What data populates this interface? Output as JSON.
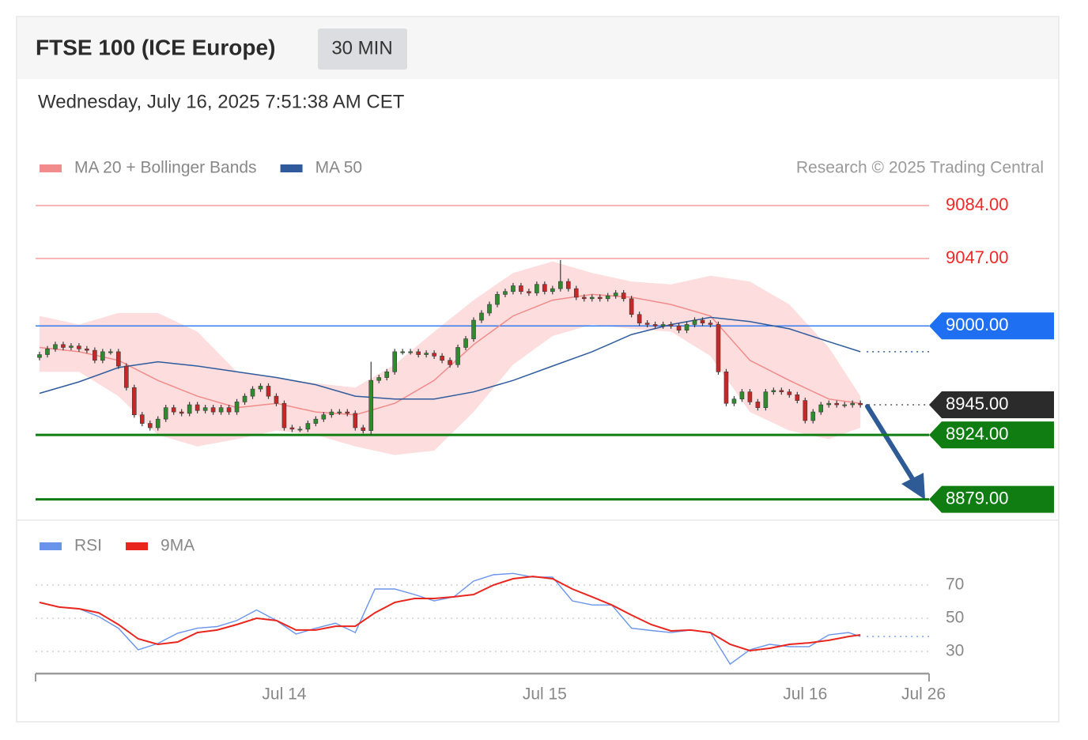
{
  "header": {
    "title": "FTSE 100 (ICE Europe)",
    "timeframe": "30 MIN",
    "date": "Wednesday, July 16, 2025 7:51:38 AM CET"
  },
  "chart_data": [
    {
      "type": "candlestick",
      "credit": "Research © 2025 Trading Central",
      "up_color": "#2e8b2e",
      "down_color": "#c62828",
      "open": [
        8978,
        8980,
        8984,
        8987,
        8985,
        8986,
        8984,
        8983,
        8976,
        8982,
        8982,
        8972,
        8957,
        8938,
        8932,
        8929,
        8935,
        8943,
        8940,
        8939,
        8945,
        8941,
        8943,
        8940,
        8943,
        8940,
        8947,
        8951,
        8956,
        8958,
        8951,
        8946,
        8929,
        8928,
        8928,
        8932,
        8935,
        8938,
        8940,
        8940,
        8939,
        8929,
        8927,
        8962,
        8964,
        8968,
        8982,
        8982,
        8982,
        8980,
        8981,
        8979,
        8976,
        8973,
        8985,
        8991,
        9004,
        9009,
        9015,
        9022,
        9024,
        9028,
        9024,
        9023,
        9029,
        9024,
        9026,
        9031,
        9026,
        9020,
        9019,
        9020,
        9019,
        9021,
        9023,
        9019,
        9008,
        9002,
        9001,
        9000,
        9001,
        9000,
        8997,
        9001,
        9004,
        9002,
        9001,
        8968,
        8946,
        8949,
        8954,
        8947,
        8943,
        8954,
        8955,
        8954,
        8952,
        8948,
        8934,
        8940,
        8945,
        8946,
        8945,
        8945,
        8946
      ],
      "high": [
        8982,
        8986,
        8989,
        8989,
        8988,
        8988,
        8986,
        8985,
        8984,
        8984,
        8984,
        8974,
        8959,
        8940,
        8934,
        8937,
        8945,
        8945,
        8942,
        8947,
        8947,
        8945,
        8945,
        8945,
        8945,
        8949,
        8953,
        8958,
        8960,
        8960,
        8953,
        8948,
        8931,
        8930,
        8934,
        8937,
        8940,
        8942,
        8942,
        8942,
        8941,
        8931,
        8975,
        8966,
        8970,
        8984,
        8984,
        8984,
        8984,
        8983,
        8983,
        8981,
        8978,
        8987,
        8993,
        9006,
        9011,
        9017,
        9024,
        9026,
        9030,
        9030,
        9026,
        9031,
        9031,
        9028,
        9046,
        9033,
        9028,
        9022,
        9022,
        9022,
        9023,
        9025,
        9025,
        9021,
        9010,
        9004,
        9003,
        9003,
        9003,
        9002,
        9003,
        9006,
        9006,
        9004,
        9003,
        8970,
        8951,
        8956,
        8956,
        8949,
        8956,
        8957,
        8957,
        8956,
        8954,
        8950,
        8942,
        8947,
        8948,
        8948,
        8947,
        8948,
        8948
      ],
      "low": [
        8976,
        8978,
        8982,
        8983,
        8983,
        8982,
        8981,
        8974,
        8974,
        8980,
        8970,
        8955,
        8936,
        8930,
        8927,
        8927,
        8933,
        8938,
        8937,
        8937,
        8939,
        8939,
        8938,
        8938,
        8938,
        8938,
        8945,
        8949,
        8954,
        8949,
        8944,
        8927,
        8926,
        8926,
        8926,
        8930,
        8933,
        8936,
        8938,
        8937,
        8927,
        8925,
        8924,
        8960,
        8962,
        8966,
        8980,
        8980,
        8978,
        8978,
        8977,
        8974,
        8971,
        8971,
        8983,
        8989,
        9002,
        9007,
        9013,
        9020,
        9022,
        9022,
        9021,
        9021,
        9022,
        9022,
        9024,
        9024,
        9018,
        9017,
        9017,
        9017,
        9017,
        9019,
        9017,
        9006,
        9000,
        8999,
        8998,
        8998,
        8998,
        8995,
        8995,
        8999,
        9000,
        8999,
        8966,
        8944,
        8944,
        8947,
        8945,
        8941,
        8941,
        8952,
        8952,
        8950,
        8946,
        8932,
        8932,
        8938,
        8943,
        8943,
        8943,
        8943,
        8943
      ],
      "close": [
        8980,
        8984,
        8987,
        8985,
        8986,
        8984,
        8983,
        8976,
        8982,
        8982,
        8972,
        8957,
        8938,
        8932,
        8929,
        8935,
        8943,
        8940,
        8939,
        8945,
        8941,
        8943,
        8940,
        8943,
        8940,
        8947,
        8951,
        8956,
        8958,
        8951,
        8946,
        8929,
        8928,
        8928,
        8932,
        8935,
        8938,
        8940,
        8940,
        8939,
        8929,
        8927,
        8962,
        8964,
        8968,
        8982,
        8982,
        8982,
        8980,
        8981,
        8979,
        8976,
        8973,
        8985,
        8991,
        9004,
        9009,
        9015,
        9022,
        9024,
        9028,
        9024,
        9023,
        9029,
        9024,
        9026,
        9031,
        9026,
        9020,
        9019,
        9020,
        9019,
        9021,
        9023,
        9019,
        9008,
        9002,
        9001,
        9000,
        9001,
        9000,
        8997,
        9001,
        9004,
        9002,
        9001,
        8968,
        8946,
        8949,
        8954,
        8947,
        8943,
        8954,
        8955,
        8954,
        8952,
        8948,
        8934,
        8940,
        8945,
        8946,
        8945,
        8945,
        8946,
        8945
      ],
      "overlays": [
        {
          "name": "MA 20 + Bollinger Bands",
          "color": "#f28b8b",
          "band_color": "#fdd7d7",
          "x": [
            0,
            5,
            10,
            15,
            20,
            25,
            30,
            35,
            40,
            45,
            50,
            55,
            60,
            65,
            70,
            75,
            80,
            85,
            90,
            95,
            100,
            104
          ],
          "values": [
            8985,
            8982,
            8976,
            8962,
            8951,
            8943,
            8946,
            8940,
            8938,
            8946,
            8962,
            8987,
            9007,
            9018,
            9022,
            9020,
            9015,
            9007,
            8976,
            8962,
            8949,
            8946
          ],
          "upper": [
            9007,
            9001,
            9009,
            9009,
            8996,
            8968,
            8964,
            8960,
            8957,
            8973,
            8996,
            9018,
            9037,
            9045,
            9037,
            9031,
            9029,
            9035,
            9031,
            9015,
            8985,
            8951
          ],
          "lower": [
            8968,
            8968,
            8951,
            8924,
            8916,
            8921,
            8927,
            8924,
            8916,
            8910,
            8913,
            8940,
            8973,
            8993,
            9001,
            8998,
            8996,
            8979,
            8940,
            8927,
            8921,
            8929
          ]
        },
        {
          "name": "MA 50",
          "color": "#2f5b9c",
          "x": [
            0,
            5,
            10,
            15,
            20,
            25,
            30,
            35,
            40,
            45,
            50,
            55,
            60,
            65,
            70,
            75,
            80,
            85,
            90,
            95,
            100,
            104
          ],
          "values": [
            8953,
            8961,
            8971,
            8975,
            8972,
            8968,
            8964,
            8959,
            8951,
            8949,
            8949,
            8954,
            8962,
            8972,
            8982,
            8994,
            9001,
            9006,
            9003,
            8998,
            8989,
            8982
          ]
        }
      ],
      "levels": [
        {
          "value": 9084,
          "label": "9084.00",
          "color": "#f02828",
          "line": "solid",
          "tag": false
        },
        {
          "value": 9047,
          "label": "9047.00",
          "color": "#f02828",
          "line": "solid",
          "tag": false
        },
        {
          "value": 9000,
          "label": "9000.00",
          "color": "#1f6ff2",
          "line": "solid",
          "tag": true
        },
        {
          "value": 8945,
          "label": "8945.00",
          "color": "#2b2b2b",
          "line": "dotted",
          "tag": true
        },
        {
          "value": 8924,
          "label": "8924.00",
          "color": "#0f7d12",
          "line": "thick",
          "tag": true
        },
        {
          "value": 8879,
          "label": "8879.00",
          "color": "#0f7d12",
          "line": "thick",
          "tag": true
        }
      ],
      "xlim": [
        -0.5,
        112.7
      ],
      "ylim": [
        8870,
        9095
      ]
    },
    {
      "type": "line",
      "series": [
        {
          "name": "RSI",
          "color": "#6a94ec",
          "x": [
            0,
            2.5,
            5,
            7.5,
            10,
            12.5,
            15,
            17.5,
            20,
            22.5,
            25,
            27.5,
            30,
            32.5,
            35,
            37.5,
            40,
            42.5,
            45,
            47.5,
            50,
            52.5,
            55,
            57.5,
            60,
            62.5,
            65,
            67.5,
            70,
            72.5,
            75,
            77.5,
            80,
            82.5,
            85,
            87.5,
            90,
            92.5,
            95,
            97.5,
            100,
            102.5,
            104
          ],
          "values": [
            59.5,
            56.7,
            55.7,
            51,
            44,
            31,
            34.8,
            41,
            44,
            45,
            48.6,
            55,
            48.6,
            40.5,
            44,
            47,
            41.4,
            67.6,
            67.6,
            64.3,
            60.5,
            62.9,
            72.4,
            76.2,
            77,
            74.8,
            74.8,
            60.5,
            58,
            58,
            44,
            42.6,
            41.4,
            42.9,
            41.4,
            22.4,
            31,
            34.3,
            32.9,
            32.9,
            40,
            41.4,
            39
          ]
        },
        {
          "name": "9MA",
          "color": "#e8261e",
          "x": [
            0,
            2.5,
            5,
            7.5,
            10,
            12.5,
            15,
            17.5,
            20,
            22.5,
            25,
            27.5,
            30,
            32.5,
            35,
            37.5,
            40,
            42.5,
            45,
            47.5,
            50,
            52.5,
            55,
            57.5,
            60,
            62.5,
            65,
            67.5,
            70,
            72.5,
            75,
            77.5,
            80,
            82.5,
            85,
            87.5,
            90,
            92.5,
            95,
            97.5,
            100,
            102.5,
            104
          ],
          "values": [
            59.5,
            56.7,
            55.7,
            53.3,
            46.2,
            37.6,
            34.3,
            35.7,
            41.4,
            42.9,
            46.2,
            50,
            48.6,
            42.9,
            42.9,
            45.2,
            45.2,
            53.3,
            59.5,
            61.9,
            61.9,
            62.9,
            64.3,
            70,
            73.8,
            75.2,
            73.8,
            67.6,
            62.9,
            58,
            51.9,
            46.2,
            42.4,
            42.9,
            41.4,
            34.3,
            30.5,
            31.9,
            34.3,
            35.2,
            36.7,
            39,
            40
          ]
        }
      ],
      "xlim": [
        -0.5,
        112.7
      ],
      "ylim": [
        20,
        80
      ],
      "yticks": [
        70,
        50,
        30
      ],
      "xticks": [
        {
          "value": 31,
          "label": "Jul 14"
        },
        {
          "value": 64,
          "label": "Jul 15"
        },
        {
          "value": 97,
          "label": "Jul 16"
        },
        {
          "value": 112,
          "label": "Jul 26"
        }
      ]
    }
  ]
}
